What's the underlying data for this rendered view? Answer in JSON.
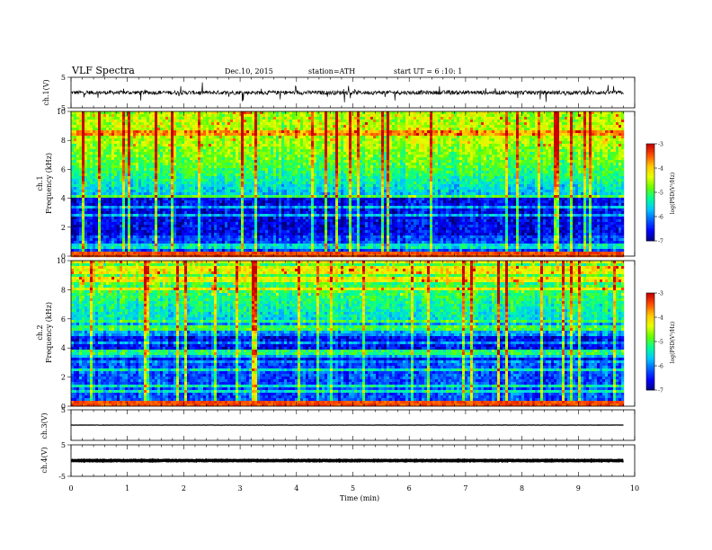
{
  "header": {
    "title": "VLF  Spectra",
    "date": "Dec.10, 2015",
    "station": "station=ATH",
    "start": "start  UT =   6  :10: 1"
  },
  "colors": {
    "colormap": [
      "#000078",
      "#0000ff",
      "#0060ff",
      "#00c8ff",
      "#00ff96",
      "#64ff00",
      "#e6ff00",
      "#ffc800",
      "#ff5000",
      "#c80000",
      "#ffffff"
    ],
    "trace": "#000000",
    "background": "#ffffff"
  },
  "chart_data": [
    {
      "type": "line",
      "name": "ch1-waveform",
      "ylabel": "ch.1(V)",
      "yticks": [
        "5",
        "-5"
      ],
      "ylim": [
        -5,
        5
      ],
      "x_range_min": [
        0,
        9.8
      ],
      "baseline": 0,
      "noise_amplitude": 1.3
    },
    {
      "type": "heatmap",
      "name": "ch1-spectrogram",
      "ylabel_channel": "ch.1",
      "ylabel": "Frequency  (kHz)",
      "yticks": [
        "0",
        "2",
        "4",
        "6",
        "8",
        "10"
      ],
      "ylim_khz": [
        0,
        10
      ],
      "x_range_min": [
        0,
        9.8
      ],
      "colorbar": {
        "label": "log(PSD(V²/Hz)",
        "ticks": [
          "-3",
          "-4",
          "-5",
          "-6",
          "-7"
        ],
        "range": [
          -7,
          -3
        ]
      }
    },
    {
      "type": "heatmap",
      "name": "ch2-spectrogram",
      "ylabel_channel": "ch.2",
      "ylabel": "Frequency  (kHz)",
      "yticks": [
        "0",
        "2",
        "4",
        "6",
        "8",
        "10"
      ],
      "ylim_khz": [
        0,
        10
      ],
      "x_range_min": [
        0,
        9.8
      ],
      "colorbar": {
        "label": "log(PSD(V²/Hz)",
        "ticks": [
          "-3",
          "-4",
          "-5",
          "-6",
          "-7"
        ],
        "range": [
          -7,
          -3
        ]
      }
    },
    {
      "type": "line",
      "name": "ch3-waveform",
      "ylabel": "ch.3(V)",
      "yticks": [
        "5"
      ],
      "ylim": [
        -5,
        5
      ],
      "x_range_min": [
        0,
        9.8
      ],
      "baseline": 0,
      "noise_amplitude": 0.1
    },
    {
      "type": "line",
      "name": "ch4-waveform",
      "ylabel": "ch.4(V)",
      "yticks": [
        "5",
        "-5"
      ],
      "ylim": [
        -5,
        5
      ],
      "x_range_min": [
        0,
        9.8
      ],
      "baseline": 0,
      "noise_amplitude": 0.15
    }
  ],
  "xaxis": {
    "label": "Time  (min)",
    "ticks": [
      "0",
      "1",
      "2",
      "3",
      "4",
      "5",
      "6",
      "7",
      "8",
      "9",
      "10"
    ],
    "range": [
      0,
      10
    ]
  }
}
